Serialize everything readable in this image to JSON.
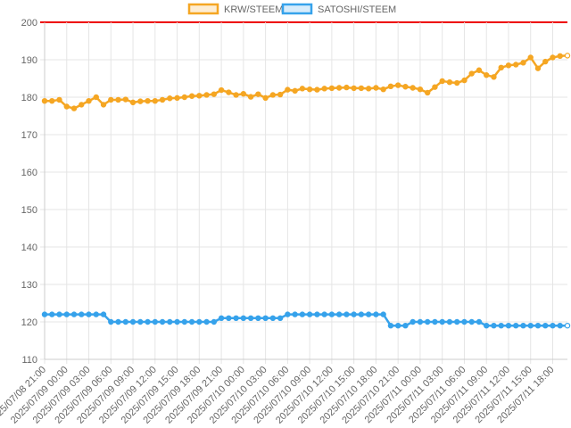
{
  "chart_data": {
    "type": "line",
    "title": "",
    "xlabel": "",
    "ylabel": "",
    "ylim": [
      110,
      200
    ],
    "y_ticks": [
      110,
      120,
      130,
      140,
      150,
      160,
      170,
      180,
      190,
      200
    ],
    "grid": true,
    "legend_position": "top-center",
    "x_tick_labels": [
      "2025/07/08 21:00",
      "2025/07/09 00:00",
      "2025/07/09 03:00",
      "2025/07/09 06:00",
      "2025/07/09 09:00",
      "2025/07/09 12:00",
      "2025/07/09 15:00",
      "2025/07/09 18:00",
      "2025/07/09 21:00",
      "2025/07/10 00:00",
      "2025/07/10 03:00",
      "2025/07/10 06:00",
      "2025/07/10 09:00",
      "2025/07/10 12:00",
      "2025/07/10 15:00",
      "2025/07/10 18:00",
      "2025/07/10 21:00",
      "2025/07/11 00:00",
      "2025/07/11 03:00",
      "2025/07/11 06:00",
      "2025/07/11 09:00",
      "2025/07/11 12:00",
      "2025/07/11 15:00",
      "2025/07/11 18:00"
    ],
    "series": [
      {
        "name": "KRW/STEEM",
        "color": "#f5a623",
        "values": [
          179.0,
          179.0,
          179.3,
          177.5,
          177.0,
          178.0,
          179.0,
          180.0,
          178.0,
          179.3,
          179.3,
          179.4,
          178.6,
          178.9,
          179.0,
          179.0,
          179.3,
          179.7,
          179.8,
          180.0,
          180.3,
          180.4,
          180.6,
          180.8,
          181.9,
          181.3,
          180.6,
          180.9,
          180.1,
          180.8,
          179.8,
          180.6,
          180.7,
          182.0,
          181.7,
          182.3,
          182.1,
          182.0,
          182.3,
          182.4,
          182.5,
          182.6,
          182.4,
          182.4,
          182.3,
          182.5,
          182.1,
          182.9,
          183.2,
          182.8,
          182.5,
          182.1,
          181.2,
          182.7,
          184.3,
          184.0,
          183.8,
          184.5,
          186.3,
          187.2,
          185.9,
          185.4,
          187.9,
          188.5,
          188.7,
          189.2,
          190.6,
          187.7,
          189.5,
          190.6,
          191.0,
          191.1
        ]
      },
      {
        "name": "SATOSHI/STEEM",
        "color": "#36a2eb",
        "values": [
          122,
          122,
          122,
          122,
          122,
          122,
          122,
          122,
          122,
          120,
          120,
          120,
          120,
          120,
          120,
          120,
          120,
          120,
          120,
          120,
          120,
          120,
          120,
          120,
          121,
          121,
          121,
          121,
          121,
          121,
          121,
          121,
          121,
          122,
          122,
          122,
          122,
          122,
          122,
          122,
          122,
          122,
          122,
          122,
          122,
          122,
          122,
          119,
          119,
          119,
          120,
          120,
          120,
          120,
          120,
          120,
          120,
          120,
          120,
          120,
          119,
          119,
          119,
          119,
          119,
          119,
          119,
          119,
          119,
          119,
          119,
          119
        ]
      }
    ]
  }
}
